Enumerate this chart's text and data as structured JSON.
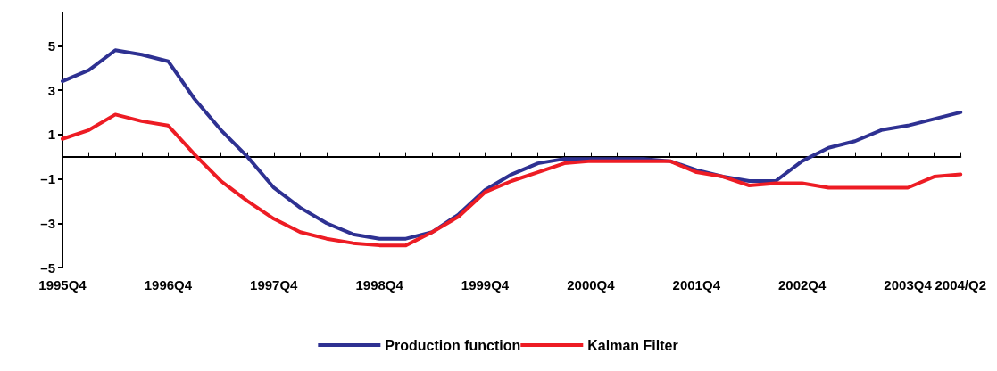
{
  "chart_data": {
    "type": "line",
    "categories": [
      "1995Q4",
      null,
      null,
      null,
      "1996Q4",
      null,
      null,
      null,
      "1997Q4",
      null,
      null,
      null,
      "1998Q4",
      null,
      null,
      null,
      "1999Q4",
      null,
      null,
      null,
      "2000Q4",
      null,
      null,
      null,
      "2001Q4",
      null,
      null,
      null,
      "2002Q4",
      null,
      null,
      null,
      "2003Q4",
      null,
      "2004/Q2"
    ],
    "series": [
      {
        "name": "Production function",
        "color": "#2e3192",
        "values": [
          3.4,
          3.9,
          4.8,
          4.6,
          4.3,
          2.6,
          1.2,
          0.0,
          -1.4,
          -2.3,
          -3.0,
          -3.5,
          -3.7,
          -3.7,
          -3.4,
          -2.6,
          -1.5,
          -0.8,
          -0.3,
          -0.1,
          -0.1,
          -0.1,
          -0.1,
          -0.2,
          -0.6,
          -0.9,
          -1.1,
          -1.1,
          -0.2,
          0.4,
          0.7,
          1.2,
          1.4,
          1.7,
          2.0
        ]
      },
      {
        "name": "Kalman Filter",
        "color": "#ed1c24",
        "values": [
          0.8,
          1.2,
          1.9,
          1.6,
          1.4,
          0.1,
          -1.1,
          -2.0,
          -2.8,
          -3.4,
          -3.7,
          -3.9,
          -4.0,
          -4.0,
          -3.4,
          -2.7,
          -1.6,
          -1.1,
          -0.7,
          -0.3,
          -0.2,
          -0.2,
          -0.2,
          -0.2,
          -0.7,
          -0.9,
          -1.3,
          -1.2,
          -1.2,
          -1.4,
          -1.4,
          -1.4,
          -1.4,
          -0.9,
          -0.8
        ]
      }
    ],
    "ylim": [
      -5,
      6.5
    ],
    "yticks": [
      {
        "value": -5,
        "label": "–5"
      },
      {
        "value": -3,
        "label": "–3"
      },
      {
        "value": -1,
        "label": "–1"
      },
      1,
      3,
      5
    ],
    "grid": false,
    "legend": "bottom",
    "marker": "none",
    "line_style": "solid"
  }
}
